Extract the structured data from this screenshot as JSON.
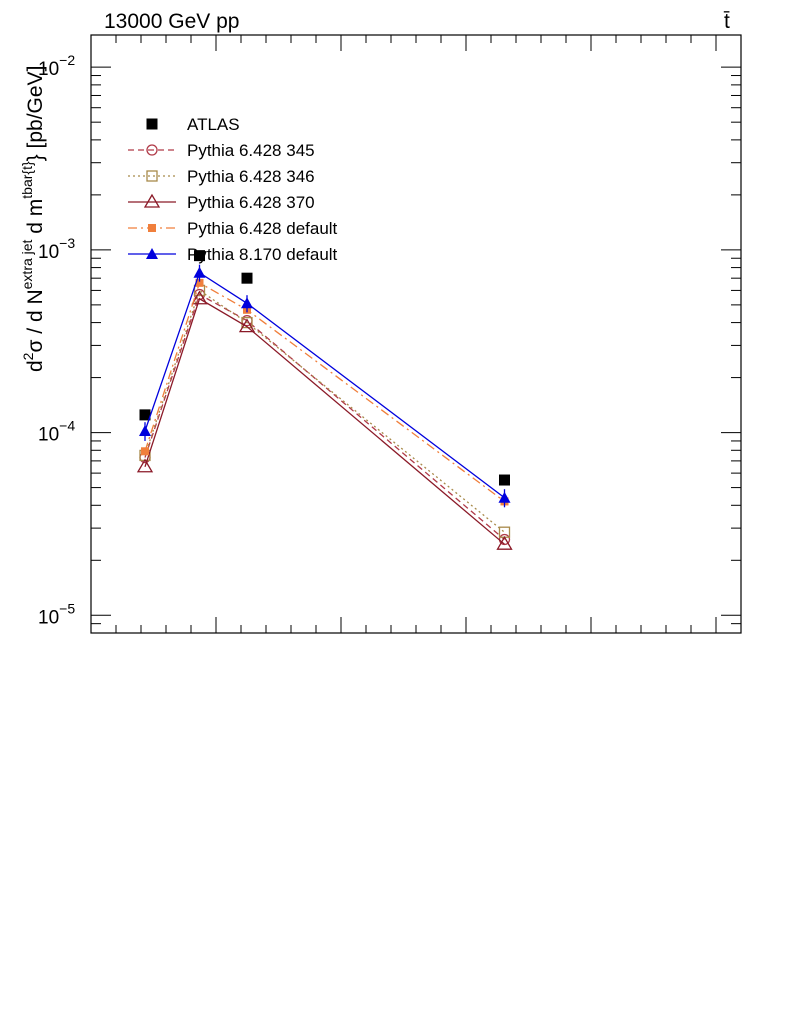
{
  "header": {
    "left_text": "13000 GeV pp",
    "right_text": "t̄"
  },
  "chart_data": {
    "type": "scatter",
    "title": "",
    "xlabel": "",
    "ylabel": {
      "base": "d",
      "sup1": "2",
      "mid": "σ / d N",
      "sup2": "extra jet",
      "mid2": " d m",
      "sup3": "tbar{t}",
      "tail": "} [pb/GeV]"
    },
    "y_scale": "log",
    "ylim": [
      8e-06,
      0.015
    ],
    "xlim": [
      0,
      1300
    ],
    "y_ticks": [
      {
        "value": 1e-05,
        "mantissa": "10",
        "exp": "−5"
      },
      {
        "value": 0.0001,
        "mantissa": "10",
        "exp": "−4"
      },
      {
        "value": 0.001,
        "mantissa": "10",
        "exp": "−3"
      },
      {
        "value": 0.01,
        "mantissa": "10",
        "exp": "−2"
      }
    ],
    "x_tick_labels_shown": false,
    "legend_position": "top-left",
    "series": [
      {
        "name": "ATLAS",
        "color": "#000000",
        "marker": "filled-square",
        "line": "none",
        "x": [
          108,
          217,
          312,
          827
        ],
        "y": [
          0.000125,
          0.00093,
          0.0007,
          5.5e-05
        ]
      },
      {
        "name": "Pythia 6.428 345",
        "color": "#b03a48",
        "marker": "open-circle",
        "line": "dashed",
        "x": [
          108,
          217,
          312,
          827
        ],
        "y": [
          7.3e-05,
          0.00057,
          0.00041,
          2.6e-05
        ]
      },
      {
        "name": "Pythia 6.428 346",
        "color": "#a88a4a",
        "marker": "open-square",
        "line": "dotted",
        "x": [
          108,
          217,
          312,
          827
        ],
        "y": [
          7.5e-05,
          0.0006,
          0.0004,
          2.85e-05
        ]
      },
      {
        "name": "Pythia 6.428 370",
        "color": "#8b1a28",
        "marker": "open-triangle",
        "line": "solid",
        "x": [
          108,
          217,
          312,
          827
        ],
        "y": [
          6.5e-05,
          0.00054,
          0.00038,
          2.45e-05
        ]
      },
      {
        "name": "Pythia 6.428 default",
        "color": "#f07f3c",
        "marker": "filled-square-small",
        "line": "dashdot",
        "x": [
          108,
          217,
          312,
          827
        ],
        "y": [
          7.9e-05,
          0.00066,
          0.00047,
          4.2e-05
        ]
      },
      {
        "name": "Pythia 8.170 default",
        "color": "#0000dd",
        "marker": "filled-triangle",
        "line": "solid",
        "x": [
          108,
          217,
          312,
          827
        ],
        "y": [
          0.000102,
          0.00075,
          0.00051,
          4.4e-05
        ],
        "err": [
          1.2e-05,
          8e-05,
          5.5e-05,
          5e-06
        ]
      }
    ]
  }
}
